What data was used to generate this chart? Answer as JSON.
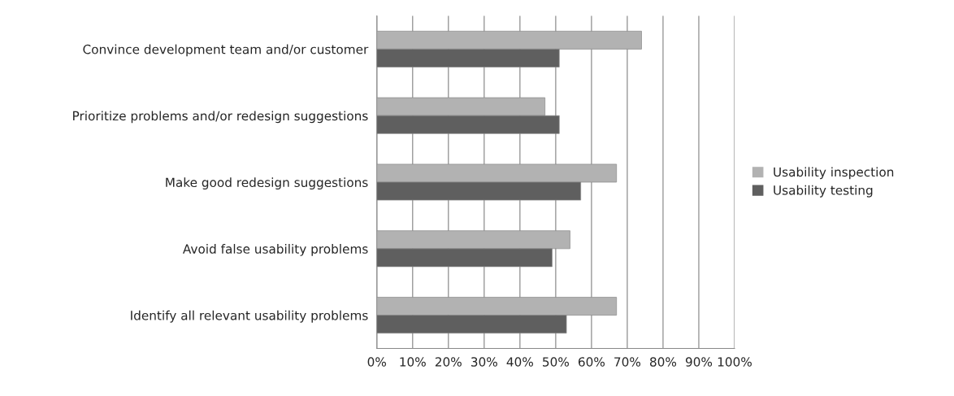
{
  "chart_data": {
    "type": "bar",
    "orientation": "horizontal",
    "categories": [
      "Convince development team and/or customer",
      "Prioritize problems and/or redesign suggestions",
      "Make good redesign suggestions",
      "Avoid false usability problems",
      "Identify all relevant usability problems"
    ],
    "series": [
      {
        "name": "Usability inspection",
        "color": "#b2b2b2",
        "values": [
          74,
          47,
          67,
          54,
          67
        ]
      },
      {
        "name": "Usability testing",
        "color": "#5f5f5f",
        "values": [
          51,
          51,
          57,
          49,
          53
        ]
      }
    ],
    "xlim": [
      0,
      100
    ],
    "xticks": [
      {
        "value": 0,
        "label": "0%"
      },
      {
        "value": 10,
        "label": "10%"
      },
      {
        "value": 20,
        "label": "20%"
      },
      {
        "value": 30,
        "label": "30%"
      },
      {
        "value": 40,
        "label": "40%"
      },
      {
        "value": 50,
        "label": "50%"
      },
      {
        "value": 60,
        "label": "60%"
      },
      {
        "value": 70,
        "label": "70%"
      },
      {
        "value": 80,
        "label": "80%"
      },
      {
        "value": 90,
        "label": "90%"
      },
      {
        "value": 100,
        "label": "100%"
      }
    ],
    "grid": "x",
    "legend": "right"
  }
}
